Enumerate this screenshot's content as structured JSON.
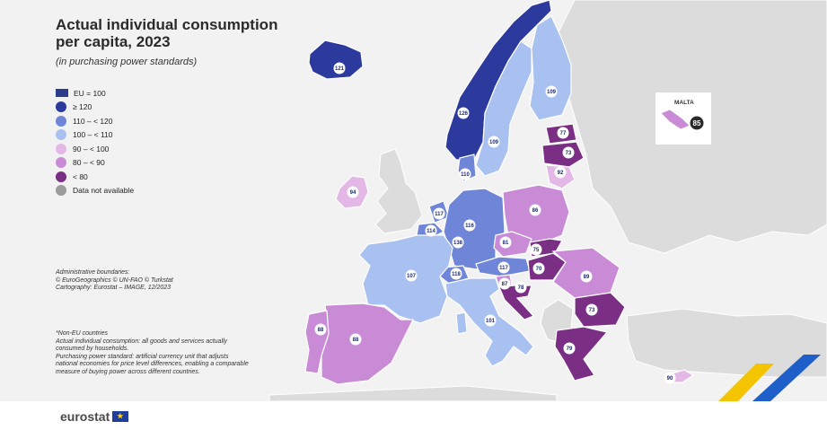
{
  "title": "Actual individual consumption per capita, 2023",
  "subtitle": "(in purchasing power standards)",
  "legend": {
    "eu_label": "EU = 100",
    "items": [
      {
        "label": "≥ 120",
        "color": "#2c3a9e"
      },
      {
        "label": "110 – < 120",
        "color": "#6f86d8"
      },
      {
        "label": "100 – < 110",
        "color": "#a9c1f0"
      },
      {
        "label": "90 – < 100",
        "color": "#e3b8e6"
      },
      {
        "label": "80 – < 90",
        "color": "#c98bd6"
      },
      {
        "label": "< 80",
        "color": "#7a2f85"
      },
      {
        "label": "Data not available",
        "color": "#9c9c9c"
      }
    ]
  },
  "admin_note": [
    "Administrative boundaries:",
    "© EuroGeographics © UN-FAO © Turkstat",
    "Cartography: Eurostat – IMAGE, 12/2023"
  ],
  "footnotes": [
    "*Non-EU countries",
    "Actual individual consumption: all goods and services actually",
    "consumed by households.",
    "Purchasing power standard: artificial currency unit that adjusts",
    "national economies for price level differences, enabling a comparable",
    "measure of buying power across different countries."
  ],
  "inset": {
    "label": "MALTA",
    "value": "85"
  },
  "brand": "eurostat",
  "countries": {
    "IS": {
      "value": "121",
      "color": "#2c3a9e"
    },
    "NO": {
      "value": "126",
      "color": "#2c3a9e"
    },
    "SE": {
      "value": "109",
      "color": "#a9c1f0"
    },
    "FI": {
      "value": "109",
      "color": "#a9c1f0"
    },
    "EE": {
      "value": "77",
      "color": "#7a2f85"
    },
    "LV": {
      "value": "73",
      "color": "#7a2f85"
    },
    "LT": {
      "value": "92",
      "color": "#e3b8e6"
    },
    "IE": {
      "value": "94",
      "color": "#e3b8e6"
    },
    "DK": {
      "value": "110",
      "color": "#6f86d8"
    },
    "NL": {
      "value": "117",
      "color": "#6f86d8"
    },
    "BE": {
      "value": "114",
      "color": "#6f86d8"
    },
    "LU": {
      "value": "138",
      "color": "#2c3a9e"
    },
    "DE": {
      "value": "116",
      "color": "#6f86d8"
    },
    "PL": {
      "value": "86",
      "color": "#c98bd6"
    },
    "CZ": {
      "value": "81",
      "color": "#c98bd6"
    },
    "SK": {
      "value": "75",
      "color": "#7a2f85"
    },
    "AT": {
      "value": "117",
      "color": "#6f86d8"
    },
    "CH": {
      "value": "118",
      "color": "#6f86d8"
    },
    "HU": {
      "value": "70",
      "color": "#7a2f85"
    },
    "RO": {
      "value": "89",
      "color": "#c98bd6"
    },
    "SI": {
      "value": "87",
      "color": "#c98bd6"
    },
    "HR": {
      "value": "78",
      "color": "#7a2f85"
    },
    "BG": {
      "value": "73",
      "color": "#7a2f85"
    },
    "EL": {
      "value": "79",
      "color": "#7a2f85"
    },
    "IT": {
      "value": "101",
      "color": "#a9c1f0"
    },
    "FR": {
      "value": "107",
      "color": "#a9c1f0"
    },
    "ES": {
      "value": "88",
      "color": "#c98bd6"
    },
    "PT": {
      "value": "88",
      "color": "#c98bd6"
    },
    "CY": {
      "value": "90",
      "color": "#e3b8e6"
    }
  },
  "colors": {
    "background": "#f2f2f3",
    "non_eu": "#d9dadb",
    "border": "#ffffff",
    "stripe_yellow": "#f5c400",
    "stripe_blue": "#1f5fc9"
  }
}
